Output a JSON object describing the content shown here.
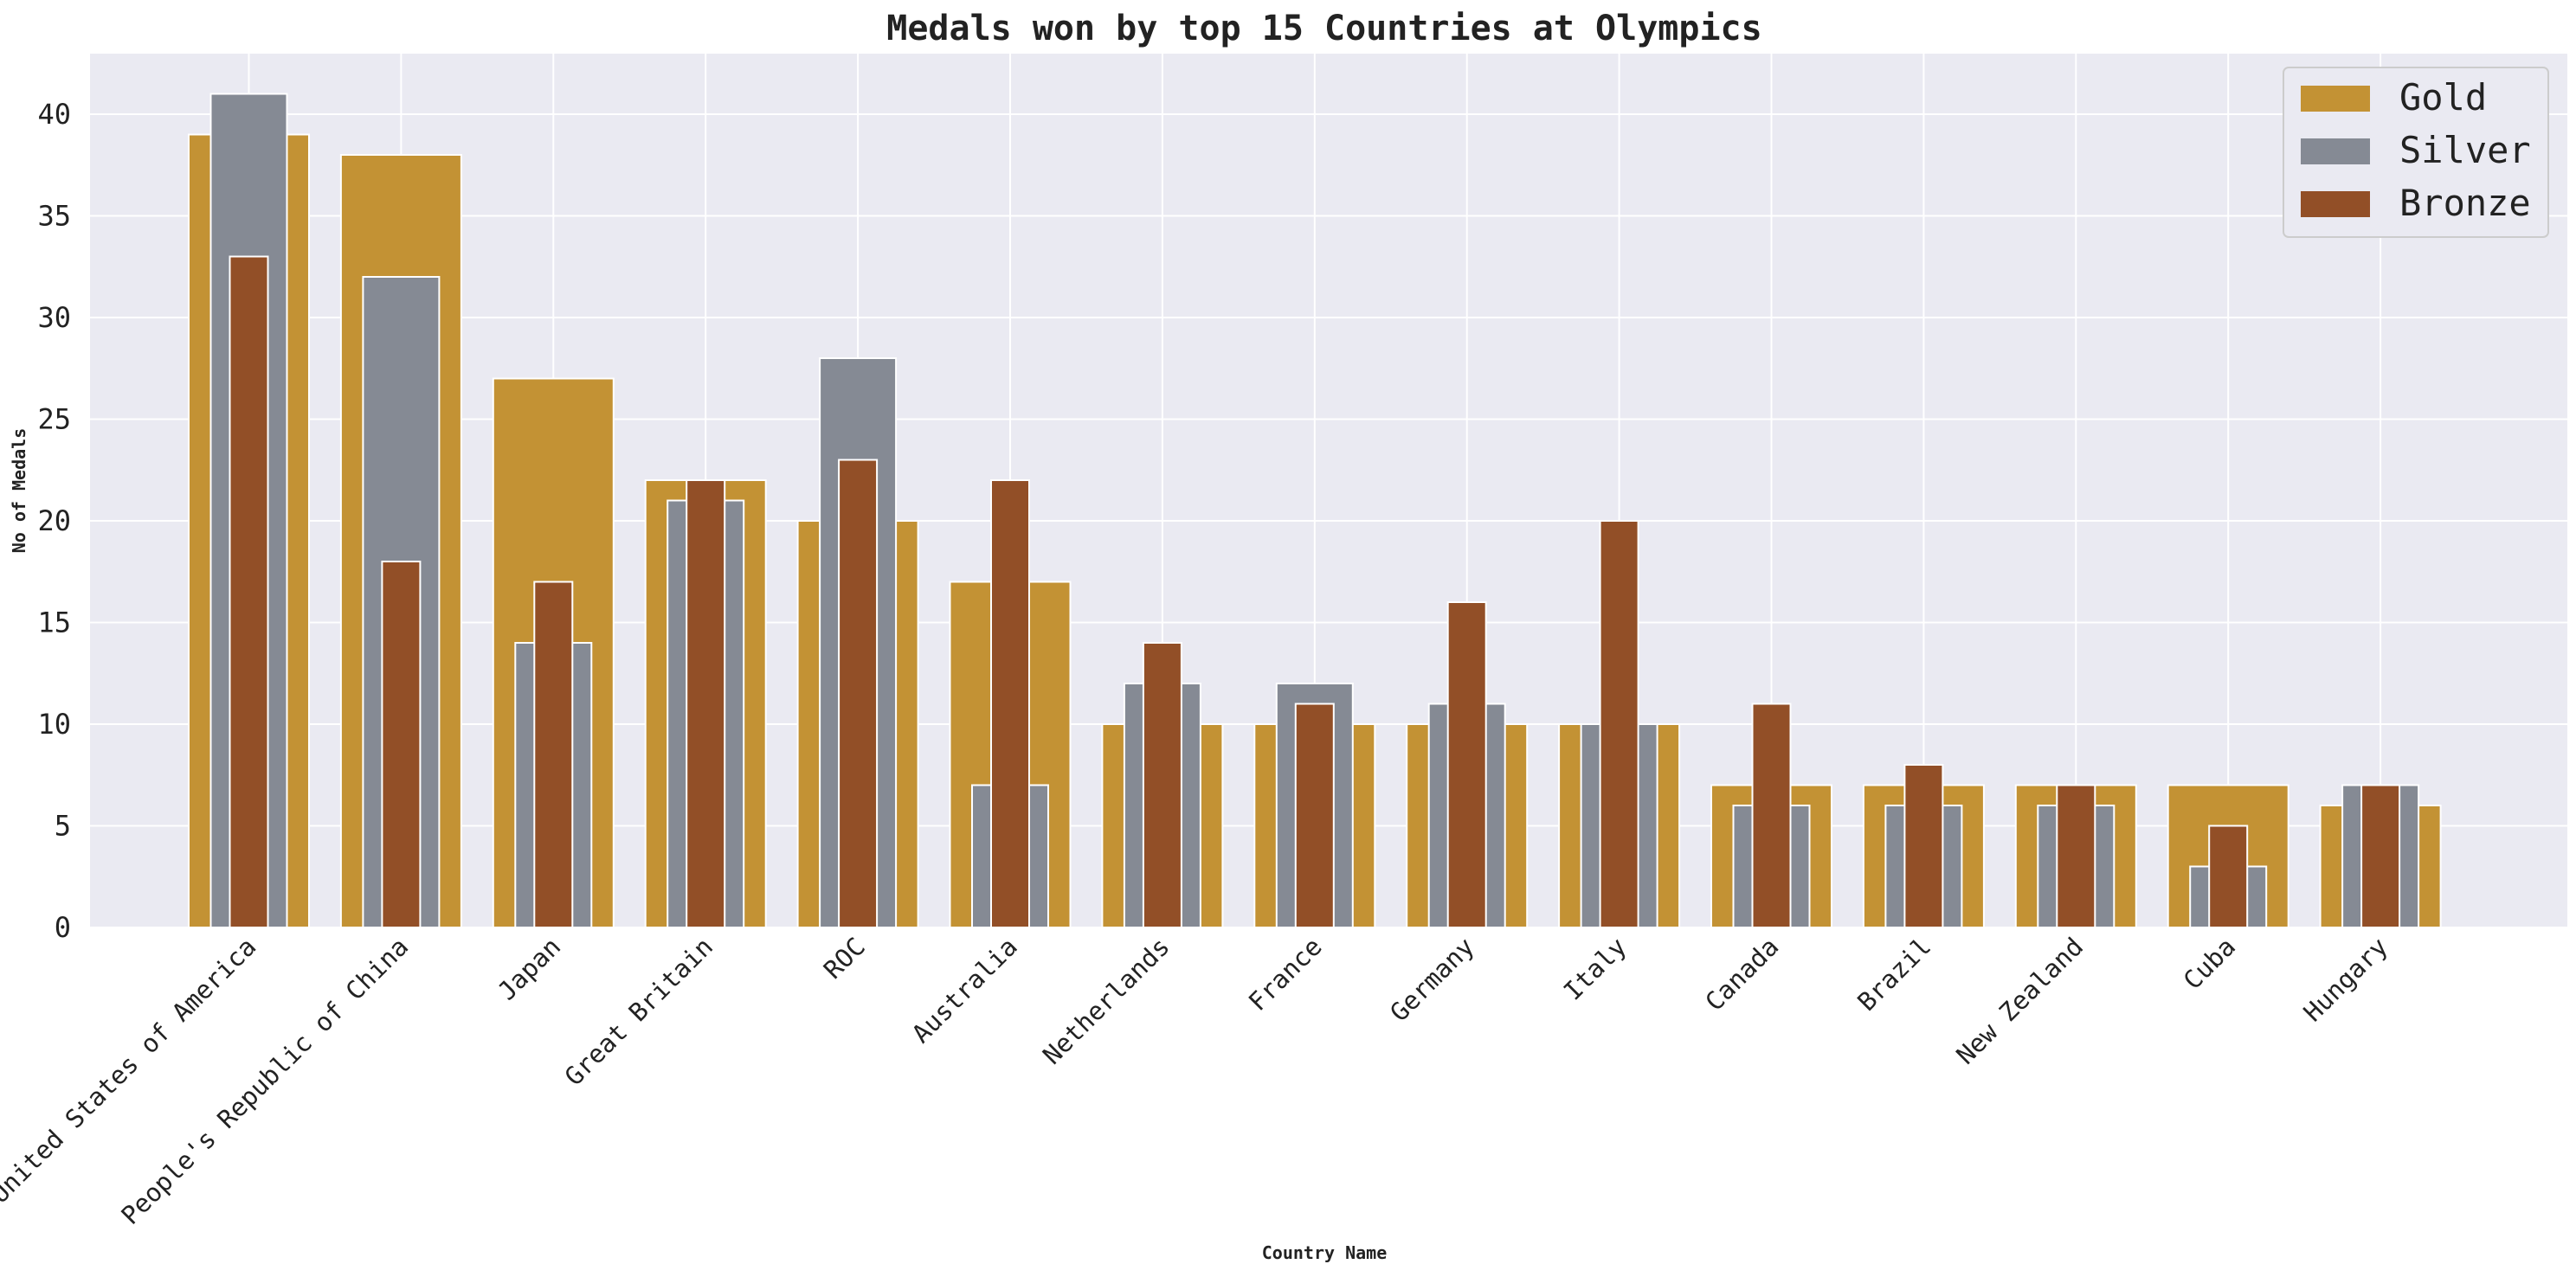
{
  "chart_data": {
    "type": "bar",
    "title": "Medals won by top 15 Countries at Olympics",
    "xlabel": "Country Name",
    "ylabel": "No of Medals",
    "ylim": [
      0,
      43
    ],
    "yticks": [
      0,
      5,
      10,
      15,
      20,
      25,
      30,
      35,
      40
    ],
    "grid": true,
    "legend_position": "top-right",
    "categories": [
      "United States of America",
      "People's Republic of China",
      "Japan",
      "Great Britain",
      "ROC",
      "Australia",
      "Netherlands",
      "France",
      "Germany",
      "Italy",
      "Canada",
      "Brazil",
      "New Zealand",
      "Cuba",
      "Hungary"
    ],
    "series": [
      {
        "name": "Gold",
        "color": "#c39234",
        "values": [
          39,
          38,
          27,
          22,
          20,
          17,
          10,
          10,
          10,
          10,
          7,
          7,
          7,
          7,
          6
        ]
      },
      {
        "name": "Silver",
        "color": "#858a94",
        "values": [
          41,
          32,
          14,
          21,
          28,
          7,
          12,
          12,
          11,
          10,
          6,
          6,
          6,
          3,
          7
        ]
      },
      {
        "name": "Bronze",
        "color": "#924f27",
        "values": [
          33,
          18,
          17,
          22,
          23,
          22,
          14,
          11,
          16,
          20,
          11,
          8,
          7,
          5,
          7
        ]
      }
    ]
  }
}
